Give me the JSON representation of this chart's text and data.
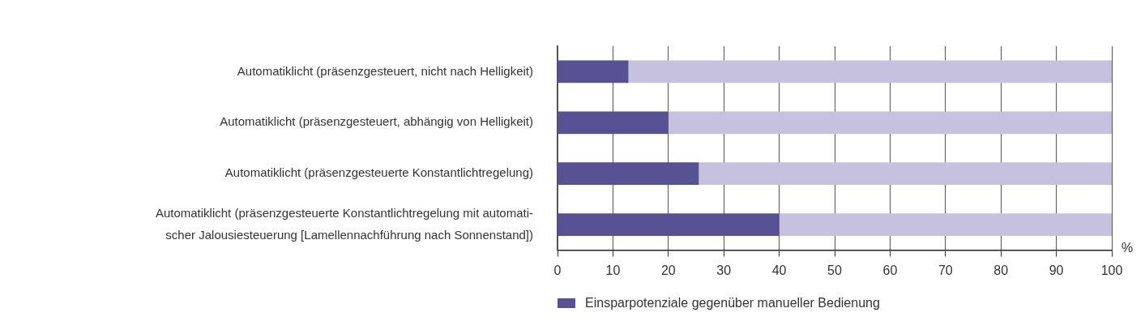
{
  "chart_data": {
    "type": "bar",
    "orientation": "horizontal",
    "stacked": true,
    "categories": [
      "Automatiklicht (präsenzgesteuert, nicht nach Helligkeit)",
      "Automatiklicht (präsenzgesteuert, abhängig von Helligkeit)",
      "Automatiklicht (präsenzgesteuerte Konstantlichtregelung)",
      "Automatiklicht (präsenzgesteuerte Konstantlichtregelung mit automati-\nscher Jalousiesteuerung [Lamellennachführung nach Sonnenstand])"
    ],
    "series": [
      {
        "name": "Einsparpotenziale gegenüber manueller Bedienung",
        "color": "#585193",
        "values": [
          12.8,
          20,
          25.5,
          40
        ]
      },
      {
        "color": "#c6c1de",
        "values": [
          87.2,
          80,
          74.5,
          60
        ]
      }
    ],
    "xlabel": "%",
    "xlim": [
      0,
      100
    ],
    "xticks": [
      0,
      10,
      20,
      30,
      40,
      50,
      60,
      70,
      80,
      90,
      100
    ],
    "grid": "x",
    "legend": "bottom"
  }
}
